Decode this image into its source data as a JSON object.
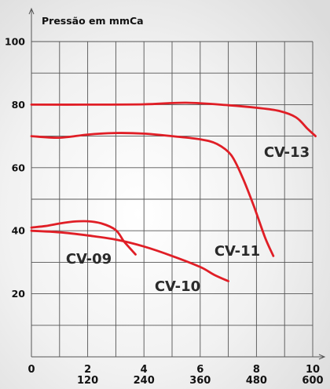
{
  "chart_data": {
    "type": "line",
    "title": "Pressão em mmCa",
    "xlabel": "",
    "ylabel": "",
    "xlim": [
      0,
      10
    ],
    "ylim": [
      0,
      100
    ],
    "grid": true,
    "yticks": [
      {
        "value": 20,
        "label": "20"
      },
      {
        "value": 40,
        "label": "40"
      },
      {
        "value": 60,
        "label": "60"
      },
      {
        "value": 80,
        "label": "80"
      },
      {
        "value": 100,
        "label": "100"
      }
    ],
    "xticks": [
      {
        "value": 0,
        "label": "0",
        "label2": ""
      },
      {
        "value": 2,
        "label": "2",
        "label2": "120"
      },
      {
        "value": 4,
        "label": "4",
        "label2": "240"
      },
      {
        "value": 6,
        "label": "6",
        "label2": "360"
      },
      {
        "value": 8,
        "label": "8",
        "label2": "480"
      },
      {
        "value": 10,
        "label": "10",
        "label2": "600"
      }
    ],
    "series": [
      {
        "name": "CV-09",
        "color": "#e01e26",
        "points": [
          [
            0,
            41
          ],
          [
            0.5,
            41.5
          ],
          [
            1,
            42.3
          ],
          [
            1.5,
            42.9
          ],
          [
            2,
            43
          ],
          [
            2.5,
            42.3
          ],
          [
            3,
            40.2
          ],
          [
            3.3,
            36.5
          ],
          [
            3.7,
            32.5
          ]
        ]
      },
      {
        "name": "CV-10",
        "color": "#e01e26",
        "points": [
          [
            0,
            40
          ],
          [
            1,
            39.5
          ],
          [
            2,
            38.5
          ],
          [
            3,
            37.2
          ],
          [
            4,
            35
          ],
          [
            5,
            32
          ],
          [
            6,
            28.5
          ],
          [
            6.5,
            26
          ],
          [
            7,
            24
          ]
        ]
      },
      {
        "name": "CV-11",
        "color": "#e01e26",
        "points": [
          [
            0,
            70
          ],
          [
            1,
            69.5
          ],
          [
            2,
            70.5
          ],
          [
            3,
            71
          ],
          [
            4,
            70.8
          ],
          [
            5,
            70
          ],
          [
            6,
            69
          ],
          [
            6.6,
            67.5
          ],
          [
            7.1,
            64
          ],
          [
            7.5,
            57
          ],
          [
            7.9,
            48
          ],
          [
            8.3,
            38
          ],
          [
            8.6,
            32
          ]
        ]
      },
      {
        "name": "CV-13",
        "color": "#e01e26",
        "points": [
          [
            0,
            80
          ],
          [
            2,
            80
          ],
          [
            4,
            80.1
          ],
          [
            5.5,
            80.6
          ],
          [
            7,
            79.8
          ],
          [
            8,
            79
          ],
          [
            8.8,
            78
          ],
          [
            9.4,
            76
          ],
          [
            9.8,
            72.5
          ],
          [
            10.1,
            70
          ]
        ]
      }
    ],
    "annotations": [
      {
        "text": "CV-09",
        "series": "CV-09"
      },
      {
        "text": "CV-10",
        "series": "CV-10"
      },
      {
        "text": "CV-11",
        "series": "CV-11"
      },
      {
        "text": "CV-13",
        "series": "CV-13"
      }
    ]
  }
}
